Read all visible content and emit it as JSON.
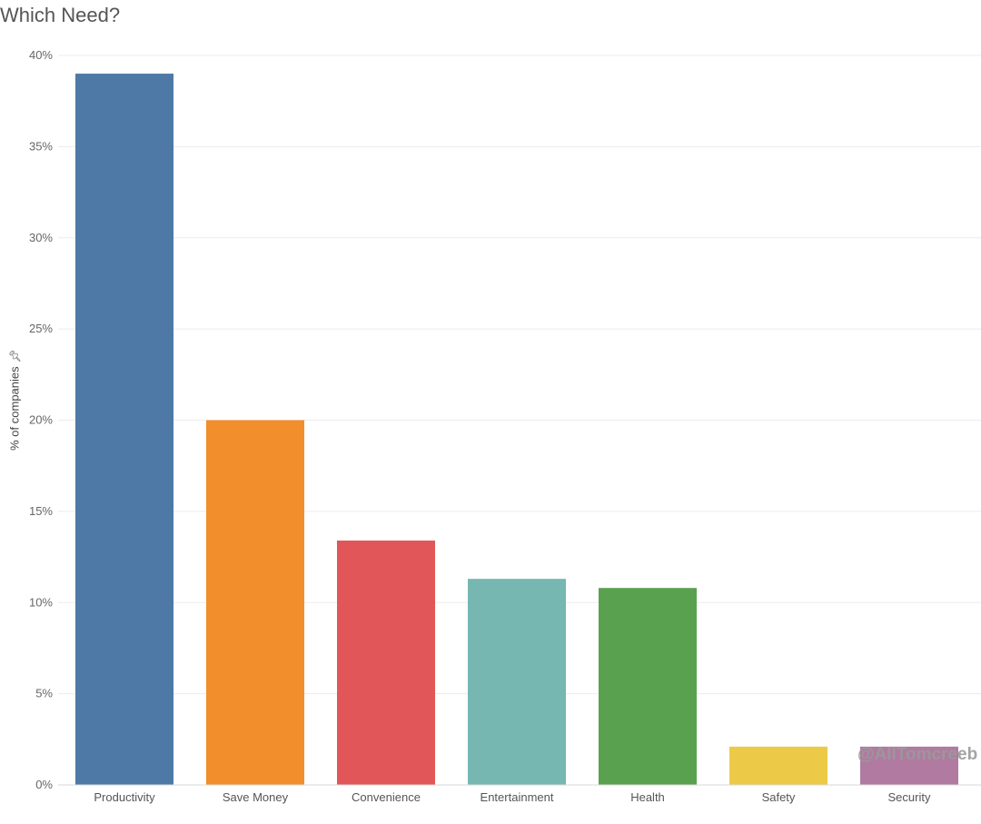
{
  "chart_data": {
    "type": "bar",
    "title": "Which Need?",
    "ylabel": "% of companies",
    "xlabel": "",
    "categories": [
      "Productivity",
      "Save Money",
      "Convenience",
      "Entertainment",
      "Health",
      "Safety",
      "Security"
    ],
    "values": [
      39.0,
      20.0,
      13.4,
      11.3,
      10.8,
      2.1,
      2.1
    ],
    "colors": [
      "#4e79a7",
      "#f28e2b",
      "#e15759",
      "#76b7b2",
      "#59a14f",
      "#edc948",
      "#b07aa1"
    ],
    "ylim": [
      0,
      40
    ],
    "yticks": [
      "0%",
      "5%",
      "10%",
      "15%",
      "20%",
      "25%",
      "30%",
      "35%",
      "40%"
    ],
    "ytick_values": [
      0,
      5,
      10,
      15,
      20,
      25,
      30,
      35,
      40
    ],
    "grid": true,
    "legend": "none"
  },
  "watermark": "@AllTomcreeb",
  "pin_icon": "pin-icon"
}
